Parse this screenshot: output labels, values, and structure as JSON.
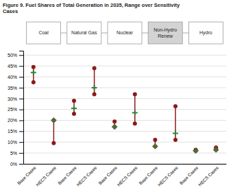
{
  "chart_data": {
    "type": "range",
    "title": "Figure 9. Fuel Shares of Total Generation in 2035, Range over Sensitivity\nCases",
    "categories": [
      "Base Cases",
      "HECS Cases",
      "Base Cases",
      "HECS Cases",
      "Base Cases",
      "HECS Cases",
      "Base Cases",
      "HECS Cases",
      "Base Cases",
      "HECS Cases"
    ],
    "groups": [
      "Coal",
      "Natural Gas",
      "Nuclear",
      "Non-Hydro\nRenew",
      "Hydro"
    ],
    "group_colors": [
      "#FFFFFF",
      "#FFFFFF",
      "#FFFFFF",
      "#D3D3D3",
      "#FFFFFF"
    ],
    "series": [
      {
        "type": "range",
        "color": "#8B1A1A",
        "marker": "circle",
        "low": [
          37.5,
          9.5,
          23,
          32,
          17,
          18.5,
          8,
          11,
          6,
          6.5
        ],
        "high": [
          44.5,
          20,
          29,
          44,
          19.5,
          32,
          11,
          26.5,
          6.5,
          7.5
        ]
      },
      {
        "type": "scatter",
        "color": "#3A7D3A",
        "marker": "plus",
        "values": [
          42,
          20,
          25.5,
          35,
          17,
          23.5,
          8,
          14,
          6,
          6.5
        ]
      }
    ],
    "ylim": [
      0,
      52
    ],
    "yticks": [
      {
        "value": 0,
        "label": "0%"
      },
      {
        "value": 5,
        "label": "5%"
      },
      {
        "value": 10,
        "label": "10%"
      },
      {
        "value": 15,
        "label": "15%"
      },
      {
        "value": 20,
        "label": "20%"
      },
      {
        "value": 25,
        "label": "25%"
      },
      {
        "value": 30,
        "label": "30%"
      },
      {
        "value": 35,
        "label": "35%"
      },
      {
        "value": 40,
        "label": "40%"
      },
      {
        "value": 45,
        "label": "45%"
      },
      {
        "value": 50,
        "label": "50%"
      }
    ],
    "grid": true
  }
}
